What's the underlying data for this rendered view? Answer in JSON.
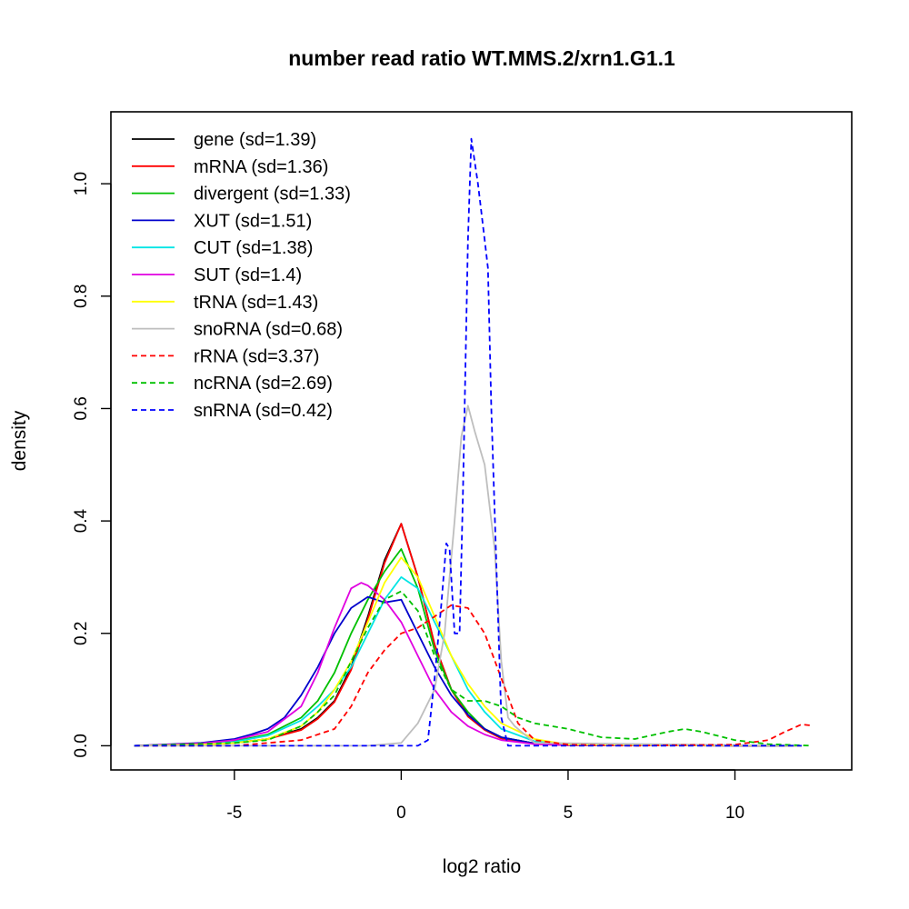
{
  "chart_data": {
    "type": "line",
    "title": "number read ratio WT.MMS.2/xrn1.G1.1",
    "xlabel": "log2 ratio",
    "ylabel": "density",
    "xlim": [
      -8.7,
      13.5
    ],
    "ylim": [
      -0.043,
      1.128
    ],
    "x_ticks": [
      {
        "value": -5,
        "label": "-5"
      },
      {
        "value": 0,
        "label": "0"
      },
      {
        "value": 5,
        "label": "5"
      },
      {
        "value": 10,
        "label": "10"
      }
    ],
    "y_ticks": [
      {
        "value": 0.0,
        "label": "0.0"
      },
      {
        "value": 0.2,
        "label": "0.2"
      },
      {
        "value": 0.4,
        "label": "0.4"
      },
      {
        "value": 0.6,
        "label": "0.6"
      },
      {
        "value": 0.8,
        "label": "0.8"
      },
      {
        "value": 1.0,
        "label": "1.0"
      }
    ],
    "legend_position": "top-left",
    "series": [
      {
        "name": "gene (sd=1.39)",
        "color": "#000000",
        "dash": "solid",
        "x": [
          -8,
          -6,
          -5,
          -4,
          -3,
          -2.5,
          -2,
          -1.5,
          -1,
          -0.5,
          0,
          0.5,
          1,
          1.5,
          2,
          2.5,
          3,
          4,
          5,
          12
        ],
        "y": [
          0,
          0.002,
          0.005,
          0.012,
          0.03,
          0.05,
          0.08,
          0.14,
          0.23,
          0.33,
          0.395,
          0.3,
          0.18,
          0.1,
          0.055,
          0.03,
          0.015,
          0.004,
          0.001,
          0
        ]
      },
      {
        "name": "mRNA (sd=1.36)",
        "color": "#ff0000",
        "dash": "solid",
        "x": [
          -8,
          -6,
          -5,
          -4,
          -3,
          -2.5,
          -2,
          -1.5,
          -1,
          -0.5,
          0,
          0.5,
          1,
          1.5,
          2,
          2.5,
          3,
          4,
          5,
          12
        ],
        "y": [
          0,
          0.002,
          0.005,
          0.012,
          0.028,
          0.048,
          0.078,
          0.135,
          0.225,
          0.325,
          0.395,
          0.3,
          0.18,
          0.1,
          0.052,
          0.028,
          0.013,
          0.003,
          0.001,
          0
        ]
      },
      {
        "name": "divergent (sd=1.33)",
        "color": "#00c000",
        "dash": "solid",
        "x": [
          -8,
          -6,
          -5,
          -4,
          -3,
          -2.5,
          -2,
          -1.5,
          -1,
          -0.5,
          0,
          0.5,
          1,
          1.5,
          2,
          2.5,
          3,
          4,
          5,
          12
        ],
        "y": [
          0,
          0.003,
          0.008,
          0.02,
          0.05,
          0.08,
          0.13,
          0.2,
          0.26,
          0.31,
          0.35,
          0.28,
          0.17,
          0.1,
          0.06,
          0.03,
          0.015,
          0.004,
          0.001,
          0
        ]
      },
      {
        "name": "XUT (sd=1.51)",
        "color": "#0000cc",
        "dash": "solid",
        "x": [
          -8,
          -6,
          -5,
          -4.5,
          -4,
          -3.5,
          -3,
          -2.5,
          -2,
          -1.5,
          -1,
          -0.5,
          0,
          0.5,
          1,
          1.5,
          2,
          2.5,
          3,
          4,
          5,
          12
        ],
        "y": [
          0,
          0.005,
          0.012,
          0.02,
          0.03,
          0.05,
          0.09,
          0.14,
          0.2,
          0.245,
          0.265,
          0.255,
          0.26,
          0.2,
          0.14,
          0.09,
          0.055,
          0.03,
          0.015,
          0.004,
          0.001,
          0
        ]
      },
      {
        "name": "CUT (sd=1.38)",
        "color": "#00e5e5",
        "dash": "solid",
        "x": [
          -8,
          -6,
          -5,
          -4,
          -3,
          -2.5,
          -2,
          -1.5,
          -1,
          -0.5,
          0,
          0.5,
          1,
          1.5,
          2,
          2.5,
          3,
          4,
          5,
          12
        ],
        "y": [
          0,
          0.003,
          0.007,
          0.018,
          0.045,
          0.07,
          0.1,
          0.14,
          0.2,
          0.26,
          0.3,
          0.28,
          0.22,
          0.16,
          0.1,
          0.06,
          0.03,
          0.008,
          0.002,
          0
        ]
      },
      {
        "name": "SUT (sd=1.4)",
        "color": "#e000e0",
        "dash": "solid",
        "x": [
          -8,
          -6,
          -5,
          -4,
          -3,
          -2.5,
          -2,
          -1.5,
          -1.2,
          -1,
          -0.5,
          0,
          0.5,
          1,
          1.5,
          2,
          2.5,
          3,
          4,
          5,
          12
        ],
        "y": [
          0,
          0.004,
          0.01,
          0.025,
          0.07,
          0.13,
          0.21,
          0.28,
          0.29,
          0.285,
          0.26,
          0.22,
          0.16,
          0.1,
          0.06,
          0.035,
          0.02,
          0.01,
          0.003,
          0.001,
          0
        ]
      },
      {
        "name": "tRNA (sd=1.43)",
        "color": "#ffff00",
        "dash": "solid",
        "x": [
          -8,
          -6,
          -5,
          -4,
          -3,
          -2.5,
          -2,
          -1.5,
          -1,
          -0.5,
          0,
          0.5,
          1,
          1.5,
          2,
          2.5,
          3,
          4,
          5,
          12
        ],
        "y": [
          0,
          0.002,
          0.005,
          0.012,
          0.035,
          0.06,
          0.1,
          0.15,
          0.22,
          0.29,
          0.335,
          0.3,
          0.23,
          0.16,
          0.11,
          0.07,
          0.04,
          0.012,
          0.002,
          0
        ]
      },
      {
        "name": "snoRNA (sd=0.68)",
        "color": "#bebebe",
        "dash": "solid",
        "x": [
          -8,
          -1,
          0,
          0.5,
          1,
          1.3,
          1.6,
          1.8,
          2.0,
          2.2,
          2.5,
          2.8,
          3.0,
          3.2,
          3.4,
          4,
          12
        ],
        "y": [
          0,
          0,
          0.005,
          0.04,
          0.1,
          0.2,
          0.4,
          0.55,
          0.605,
          0.56,
          0.5,
          0.35,
          0.15,
          0.05,
          0.035,
          0.005,
          0
        ]
      },
      {
        "name": "rRNA (sd=3.37)",
        "color": "#ff0000",
        "dash": "dashed",
        "x": [
          -8,
          -5,
          -3,
          -2,
          -1.5,
          -1,
          -0.5,
          0,
          0.5,
          1,
          1.5,
          2,
          2.5,
          3,
          3.5,
          4,
          5,
          7,
          8,
          10,
          11,
          11.5,
          12,
          12.3
        ],
        "y": [
          0,
          0,
          0.01,
          0.03,
          0.07,
          0.13,
          0.17,
          0.2,
          0.21,
          0.23,
          0.25,
          0.245,
          0.2,
          0.12,
          0.04,
          0.01,
          0.002,
          0,
          0.001,
          0.002,
          0.01,
          0.025,
          0.038,
          0.036
        ]
      },
      {
        "name": "ncRNA (sd=2.69)",
        "color": "#00c000",
        "dash": "dashed",
        "x": [
          -8,
          -5,
          -4,
          -3,
          -2.5,
          -2,
          -1.5,
          -1,
          -0.5,
          0,
          0.5,
          1,
          1.5,
          2,
          2.5,
          3,
          3.5,
          4,
          5,
          6,
          7,
          8,
          8.5,
          9,
          10,
          11,
          12.3
        ],
        "y": [
          0,
          0.005,
          0.01,
          0.035,
          0.06,
          0.09,
          0.15,
          0.21,
          0.26,
          0.275,
          0.24,
          0.16,
          0.1,
          0.08,
          0.08,
          0.07,
          0.05,
          0.04,
          0.03,
          0.015,
          0.012,
          0.025,
          0.03,
          0.025,
          0.01,
          0.003,
          0
        ]
      },
      {
        "name": "snRNA (sd=0.42)",
        "color": "#0000ff",
        "dash": "dashed",
        "x": [
          -8,
          0.5,
          0.8,
          1.0,
          1.2,
          1.35,
          1.45,
          1.6,
          1.75,
          1.85,
          2.0,
          2.1,
          2.3,
          2.5,
          2.6,
          2.7,
          3.0,
          3.2,
          12
        ],
        "y": [
          0,
          0,
          0.01,
          0.12,
          0.25,
          0.36,
          0.35,
          0.2,
          0.2,
          0.45,
          0.9,
          1.08,
          1.0,
          0.9,
          0.85,
          0.6,
          0.05,
          0,
          0
        ]
      }
    ]
  }
}
